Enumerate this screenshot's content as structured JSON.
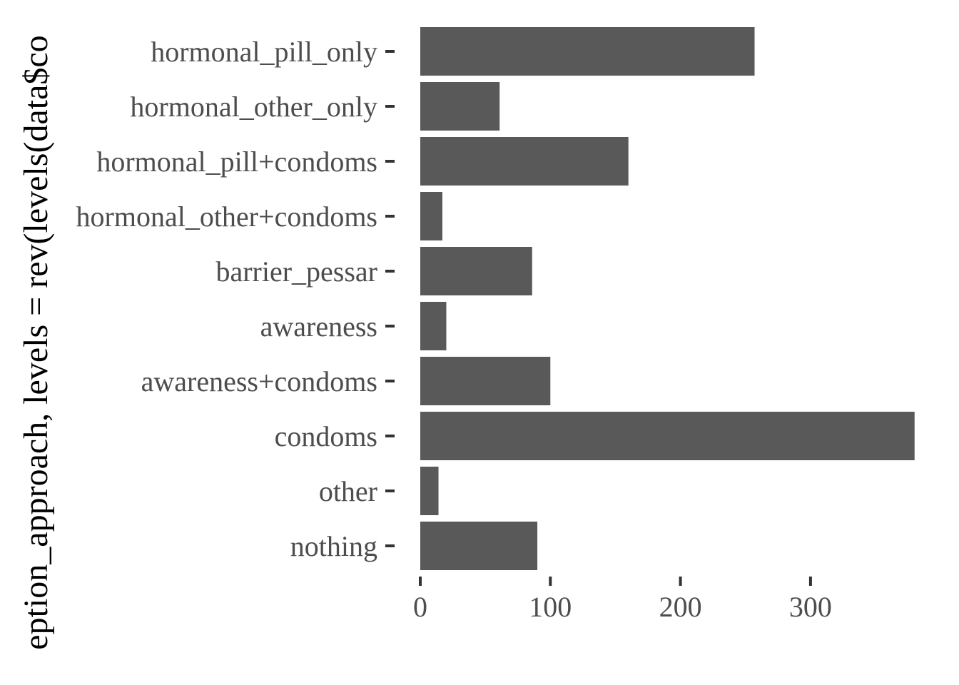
{
  "chart_data": {
    "type": "bar",
    "orientation": "horizontal",
    "categories": [
      "hormonal_pill_only",
      "hormonal_other_only",
      "hormonal_pill+condoms",
      "hormonal_other+condoms",
      "barrier_pessar",
      "awareness",
      "awareness+condoms",
      "condoms",
      "other",
      "nothing"
    ],
    "values": [
      257,
      61,
      160,
      17,
      86,
      20,
      100,
      380,
      14,
      90
    ],
    "title": "",
    "xlabel": "",
    "ylabel": "eption_approach, levels = rev(levels(data$co",
    "xlim": [
      0,
      380
    ],
    "xticks": [
      0,
      100,
      200,
      300
    ],
    "grid": false,
    "colors": {
      "bar": "#595959",
      "tick_label": "#4d4d4d",
      "axis_title": "#000000",
      "background": "#ffffff"
    }
  }
}
